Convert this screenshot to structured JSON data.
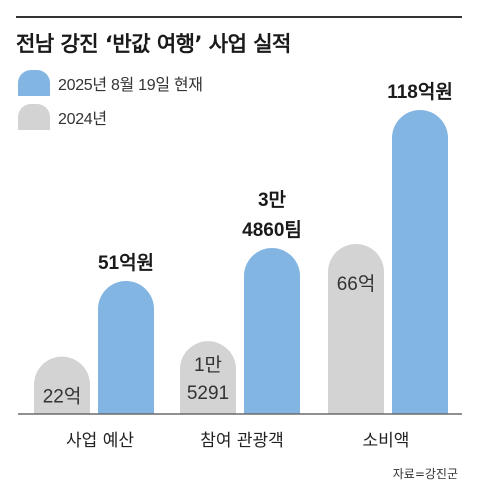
{
  "title": "전남 강진 ‘반값 여행’ 사업 실적",
  "source": "자료=강진군",
  "colors": {
    "current": "#83b5e3",
    "previous": "#d3d3d3",
    "baseline": "#6b6b6b"
  },
  "chart_data": {
    "type": "bar",
    "title": "전남 강진 ‘반값 여행’ 사업 실적",
    "categories": [
      "사업 예산",
      "참여 관광객",
      "소비액"
    ],
    "legend": [
      "2025년 8월 19일 현재",
      "2024년"
    ],
    "legend_position": "top-left",
    "grid": false,
    "series": [
      {
        "name": "2024년",
        "values": [
          22,
          15291,
          66
        ],
        "labels": [
          [
            "22억"
          ],
          [
            "1만",
            "5291"
          ],
          [
            "66억"
          ]
        ],
        "color": "#d3d3d3"
      },
      {
        "name": "2025년 8월 19일 현재",
        "values": [
          51,
          34860,
          118
        ],
        "labels": [
          [
            "51억원"
          ],
          [
            "3만",
            "4860팀"
          ],
          [
            "118억원"
          ]
        ],
        "color": "#83b5e3"
      }
    ]
  }
}
